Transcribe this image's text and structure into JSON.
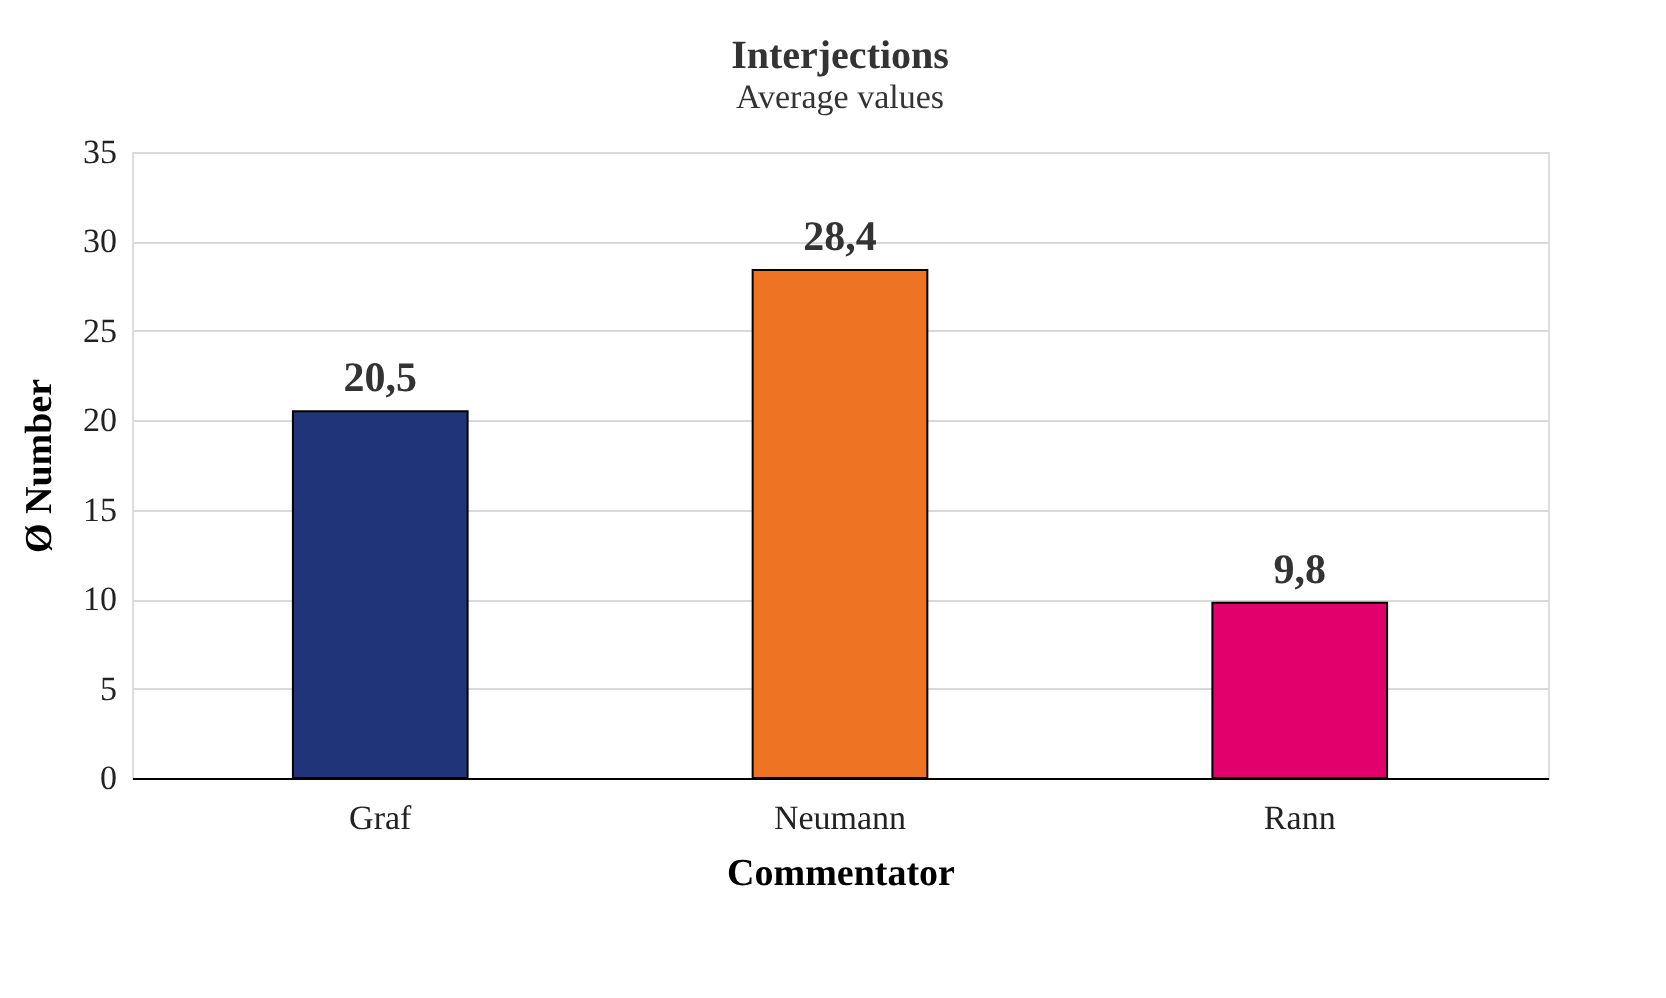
{
  "chart_data": {
    "type": "bar",
    "title": "Interjections",
    "subtitle": "Average values",
    "xlabel": "Commentator",
    "ylabel": "Ø Number",
    "categories": [
      "Graf",
      "Neumann",
      "Rann"
    ],
    "values": [
      20.5,
      28.4,
      9.8
    ],
    "colors": [
      "#1f3479",
      "#ee7424",
      "#e2006c"
    ],
    "value_labels": [
      "20,5",
      "28,4",
      "9,8"
    ],
    "ylim": [
      0,
      35
    ],
    "yticks": [
      0,
      5,
      10,
      15,
      20,
      25,
      30,
      35
    ],
    "grid": "y"
  }
}
